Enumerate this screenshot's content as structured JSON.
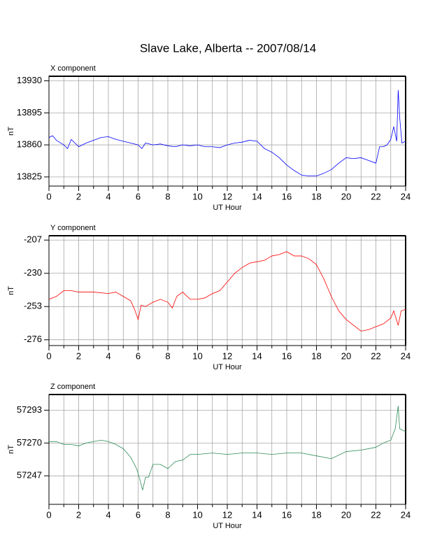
{
  "title": "Slave Lake, Alberta -- 2007/08/14",
  "chart_data": [
    {
      "type": "line",
      "panel_label": "X component",
      "x_label": "UT Hour",
      "y_label": "nT",
      "xlim": [
        0,
        24
      ],
      "xticks": [
        0,
        2,
        4,
        6,
        8,
        10,
        12,
        14,
        16,
        18,
        20,
        22,
        24
      ],
      "ylim": [
        13815,
        13935
      ],
      "yticks": [
        13825,
        13860,
        13895,
        13930
      ],
      "grid": true,
      "x": [
        0,
        0.25,
        0.5,
        1,
        1.25,
        1.5,
        2,
        2.5,
        3,
        3.5,
        4,
        4.5,
        5,
        5.5,
        6,
        6.25,
        6.5,
        7,
        7.5,
        8,
        8.5,
        9,
        9.5,
        10,
        10.5,
        11,
        11.5,
        12,
        12.5,
        13,
        13.5,
        14,
        14.5,
        15,
        15.5,
        16,
        16.5,
        17,
        17.5,
        18,
        18.5,
        19,
        19.5,
        20,
        20.5,
        21,
        21.5,
        22,
        22.25,
        22.5,
        22.75,
        23,
        23.2,
        23.4,
        23.5,
        23.6,
        23.75,
        24
      ],
      "series": [
        {
          "name": "X component",
          "color": "#0000ff",
          "values": [
            13868,
            13870,
            13865,
            13860,
            13856,
            13866,
            13858,
            13862,
            13865,
            13868,
            13869,
            13866,
            13864,
            13862,
            13860,
            13856,
            13862,
            13860,
            13861,
            13859,
            13858,
            13860,
            13859,
            13860,
            13858,
            13858,
            13857,
            13860,
            13862,
            13863,
            13865,
            13864,
            13856,
            13852,
            13846,
            13838,
            13832,
            13827,
            13826,
            13826,
            13829,
            13833,
            13840,
            13846,
            13845,
            13846,
            13843,
            13840,
            13858,
            13858,
            13860,
            13866,
            13880,
            13864,
            13920,
            13890,
            13862,
            13864
          ]
        }
      ]
    },
    {
      "type": "line",
      "panel_label": "Y component",
      "x_label": "UT Hour",
      "y_label": "nT",
      "xlim": [
        0,
        24
      ],
      "xticks": [
        0,
        2,
        4,
        6,
        8,
        10,
        12,
        14,
        16,
        18,
        20,
        22,
        24
      ],
      "ylim": [
        -280,
        -204
      ],
      "yticks": [
        -276,
        -253,
        -230,
        -207
      ],
      "grid": true,
      "x": [
        0,
        0.5,
        1,
        1.5,
        2,
        3,
        4,
        4.5,
        5,
        5.5,
        5.8,
        6,
        6.2,
        6.5,
        7,
        7.5,
        8,
        8.3,
        8.6,
        9,
        9.5,
        10,
        10.5,
        11,
        11.5,
        12,
        12.5,
        13,
        13.5,
        14,
        14.5,
        15,
        15.5,
        16,
        16.5,
        17,
        17.5,
        18,
        18.5,
        19,
        19.5,
        20,
        20.5,
        21,
        21.5,
        22,
        22.5,
        23,
        23.2,
        23.5,
        23.7,
        24
      ],
      "series": [
        {
          "name": "Y component",
          "color": "#ff0000",
          "values": [
            -248,
            -246,
            -242,
            -242,
            -243,
            -243,
            -244,
            -243,
            -246,
            -249,
            -256,
            -262,
            -252,
            -253,
            -250,
            -248,
            -250,
            -254,
            -246,
            -243,
            -248,
            -248,
            -247,
            -244,
            -242,
            -236,
            -230,
            -226,
            -223,
            -222,
            -221,
            -218,
            -217,
            -215,
            -218,
            -218,
            -220,
            -224,
            -234,
            -246,
            -256,
            -262,
            -266,
            -270,
            -269,
            -267,
            -265,
            -261,
            -256,
            -266,
            -256,
            -255
          ]
        }
      ]
    },
    {
      "type": "line",
      "panel_label": "Z component",
      "x_label": "UT Hour",
      "y_label": "nT",
      "xlim": [
        0,
        24
      ],
      "xticks": [
        0,
        2,
        4,
        6,
        8,
        10,
        12,
        14,
        16,
        18,
        20,
        22,
        24
      ],
      "ylim": [
        57227,
        57304
      ],
      "yticks": [
        57247,
        57270,
        57293
      ],
      "grid": true,
      "x": [
        0,
        0.5,
        1,
        1.5,
        2,
        2.5,
        3,
        3.5,
        4,
        4.5,
        5,
        5.5,
        5.9,
        6.1,
        6.3,
        6.5,
        6.7,
        7,
        7.5,
        8,
        8.5,
        9,
        9.5,
        10,
        11,
        12,
        13,
        14,
        15,
        16,
        17,
        18,
        19,
        20,
        21,
        22,
        22.5,
        23,
        23.3,
        23.5,
        23.6,
        24
      ],
      "series": [
        {
          "name": "Z component",
          "color": "#2e8b57",
          "values": [
            57271,
            57271,
            57269,
            57269,
            57268,
            57270,
            57271,
            57272,
            57271,
            57269,
            57266,
            57260,
            57252,
            57245,
            57237,
            57246,
            57246,
            57255,
            57255,
            57252,
            57257,
            57258,
            57262,
            57262,
            57263,
            57262,
            57263,
            57263,
            57262,
            57263,
            57263,
            57261,
            57259,
            57264,
            57265,
            57267,
            57270,
            57272,
            57280,
            57296,
            57280,
            57278
          ]
        }
      ]
    }
  ]
}
